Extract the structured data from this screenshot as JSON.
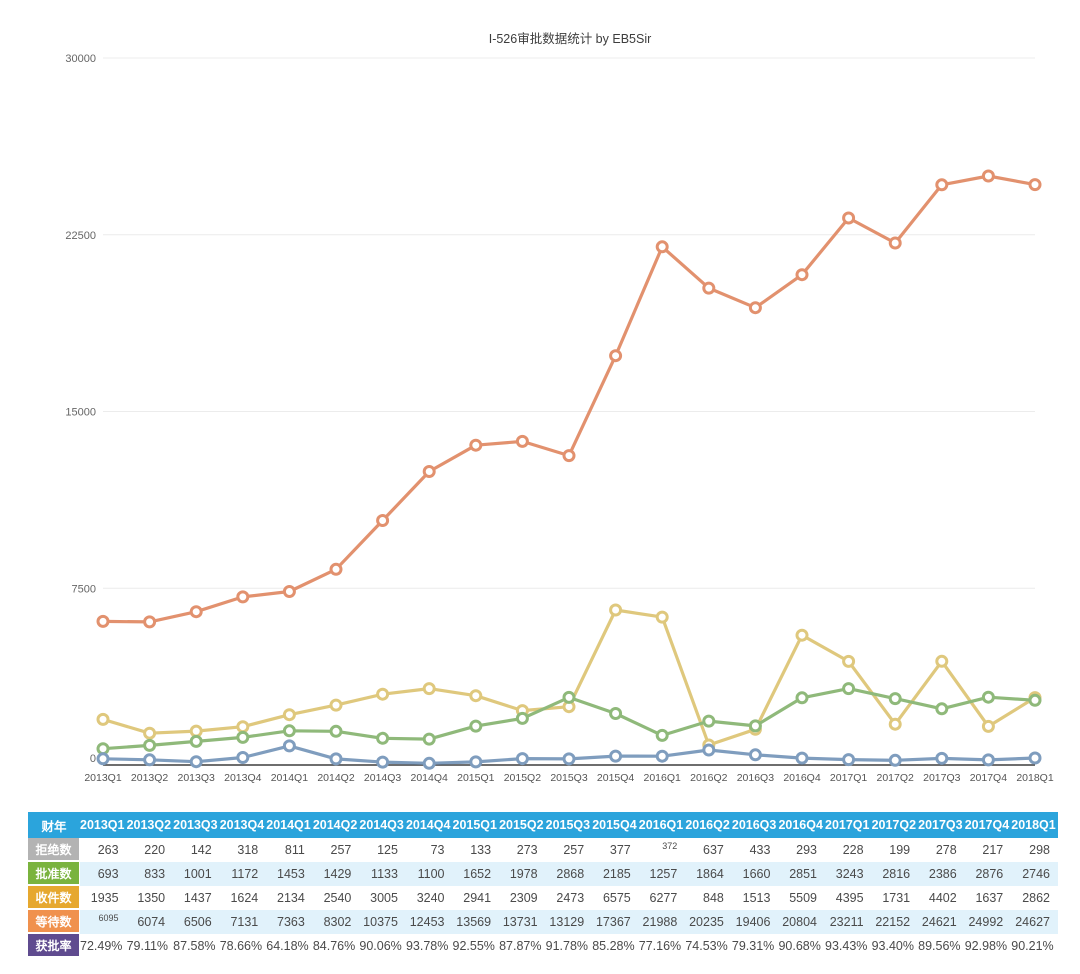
{
  "title": "I-526审批数据统计 by EB5Sir",
  "colors": {
    "table_header_bg": "#2BA4DC",
    "alt_row_bg": "#E1F2FB",
    "value_text": "#4A4A4A",
    "grid_line": "#ECECEC",
    "axis_line": "#3F3F3F",
    "y_tick_text": "#666666",
    "x_tick_text": "#555555"
  },
  "chart_data": {
    "type": "line",
    "title": "I-526审批数据统计 by EB5Sir",
    "categories": [
      "2013Q1",
      "2013Q2",
      "2013Q3",
      "2013Q4",
      "2014Q1",
      "2014Q2",
      "2014Q3",
      "2014Q4",
      "2015Q1",
      "2015Q2",
      "2015Q3",
      "2015Q4",
      "2016Q1",
      "2016Q2",
      "2016Q3",
      "2016Q4",
      "2017Q1",
      "2017Q2",
      "2017Q3",
      "2017Q4",
      "2018Q1"
    ],
    "ylim": [
      0,
      30000
    ],
    "yticks": [
      0,
      7500,
      15000,
      22500,
      30000
    ],
    "grid": true,
    "legend": "none",
    "marker": "open-circle",
    "series": [
      {
        "key": "pending",
        "name": "等待数",
        "color": "#E2916E",
        "values": [
          6095,
          6074,
          6506,
          7131,
          7363,
          8302,
          10375,
          12453,
          13569,
          13731,
          13129,
          17367,
          21988,
          20235,
          19406,
          20804,
          23211,
          22152,
          24621,
          24992,
          24627
        ]
      },
      {
        "key": "received",
        "name": "收件数",
        "color": "#DFC87D",
        "values": [
          1935,
          1350,
          1437,
          1624,
          2134,
          2540,
          3005,
          3240,
          2941,
          2309,
          2473,
          6575,
          6277,
          848,
          1513,
          5509,
          4395,
          1731,
          4402,
          1637,
          2862
        ]
      },
      {
        "key": "approved",
        "name": "批准数",
        "color": "#8FB97A",
        "values": [
          693,
          833,
          1001,
          1172,
          1453,
          1429,
          1133,
          1100,
          1652,
          1978,
          2868,
          2185,
          1257,
          1864,
          1660,
          2851,
          3243,
          2816,
          2386,
          2876,
          2746
        ]
      },
      {
        "key": "rejected",
        "name": "拒绝数",
        "color": "#7F9DBE",
        "values": [
          263,
          220,
          142,
          318,
          811,
          257,
          125,
          73,
          133,
          273,
          257,
          377,
          372,
          637,
          433,
          293,
          228,
          199,
          278,
          217,
          298
        ]
      }
    ]
  },
  "table": {
    "header": {
      "first": "财年",
      "quarters": [
        "2013Q1",
        "2013Q2",
        "2013Q3",
        "2013Q4",
        "2014Q1",
        "2014Q2",
        "2014Q3",
        "2014Q4",
        "2015Q1",
        "2015Q2",
        "2015Q3",
        "2015Q4",
        "2016Q1",
        "2016Q2",
        "2016Q3",
        "2016Q4",
        "2017Q1",
        "2017Q2",
        "2017Q3",
        "2017Q4",
        "2018Q1"
      ]
    },
    "rows": [
      {
        "key": "rejected",
        "label": "拒绝数",
        "label_bg": "#B3B3B3",
        "values": [
          "263",
          "220",
          "142",
          "318",
          "811",
          "257",
          "125",
          "73",
          "133",
          "273",
          "257",
          "377",
          "372",
          "637",
          "433",
          "293",
          "228",
          "199",
          "278",
          "217",
          "298"
        ],
        "small_cols": [
          12
        ]
      },
      {
        "key": "approved",
        "label": "批准数",
        "label_bg": "#7AB33E",
        "values": [
          "693",
          "833",
          "1001",
          "1172",
          "1453",
          "1429",
          "1133",
          "1100",
          "1652",
          "1978",
          "2868",
          "2185",
          "1257",
          "1864",
          "1660",
          "2851",
          "3243",
          "2816",
          "2386",
          "2876",
          "2746"
        ],
        "small_cols": []
      },
      {
        "key": "received",
        "label": "收件数",
        "label_bg": "#E6A82F",
        "values": [
          "1935",
          "1350",
          "1437",
          "1624",
          "2134",
          "2540",
          "3005",
          "3240",
          "2941",
          "2309",
          "2473",
          "6575",
          "6277",
          "848",
          "1513",
          "5509",
          "4395",
          "1731",
          "4402",
          "1637",
          "2862"
        ],
        "small_cols": []
      },
      {
        "key": "pending",
        "label": "等待数",
        "label_bg": "#F0914D",
        "values": [
          "6095",
          "6074",
          "6506",
          "7131",
          "7363",
          "8302",
          "10375",
          "12453",
          "13569",
          "13731",
          "13129",
          "17367",
          "21988",
          "20235",
          "19406",
          "20804",
          "23211",
          "22152",
          "24621",
          "24992",
          "24627"
        ],
        "small_cols": [
          0
        ]
      },
      {
        "key": "approval-rate",
        "label": "获批率",
        "label_bg": "#5F4B8F",
        "values": [
          "72.49%",
          "79.11%",
          "87.58%",
          "78.66%",
          "64.18%",
          "84.76%",
          "90.06%",
          "93.78%",
          "92.55%",
          "87.87%",
          "91.78%",
          "85.28%",
          "77.16%",
          "74.53%",
          "79.31%",
          "90.68%",
          "93.43%",
          "93.40%",
          "89.56%",
          "92.98%",
          "90.21%"
        ],
        "small_cols": []
      }
    ]
  }
}
